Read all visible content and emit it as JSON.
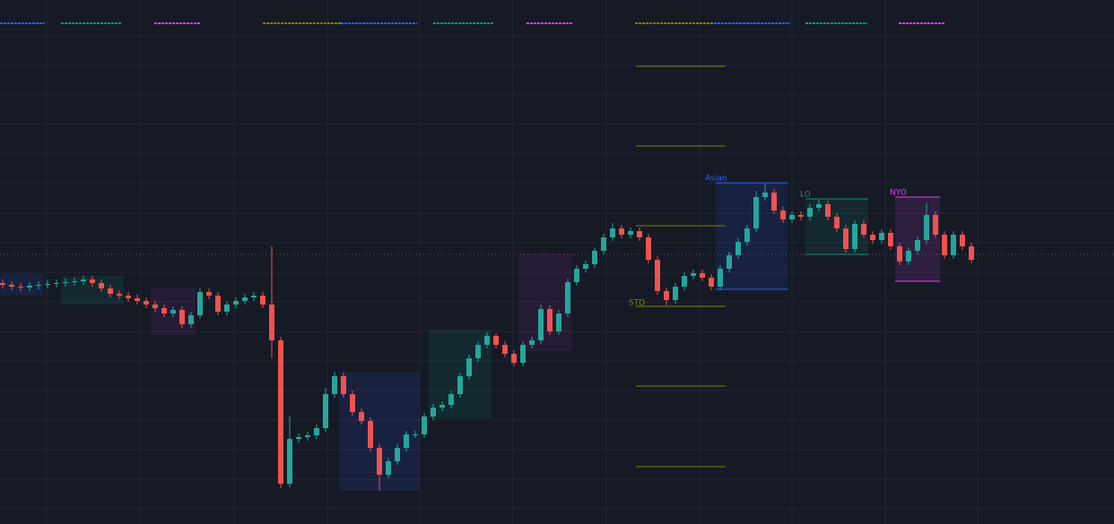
{
  "chart_data": {
    "type": "candlestick",
    "ylim": [
      0,
      585
    ],
    "up_color": "#26a69a",
    "down_color": "#ef5350",
    "open": [
      269,
      267,
      265,
      264,
      266,
      267,
      268,
      269,
      270,
      271,
      273,
      269,
      263,
      257,
      255,
      252,
      249,
      245,
      241,
      235,
      239,
      223,
      233,
      259,
      255,
      237,
      245,
      249,
      253,
      255,
      245,
      205,
      45,
      95,
      97,
      99,
      107,
      145,
      165,
      145,
      125,
      115,
      85,
      55,
      70,
      85,
      100,
      100,
      120,
      130,
      133,
      145,
      165,
      185,
      200,
      210,
      200,
      190,
      180,
      200,
      205,
      240,
      215,
      235,
      270,
      285,
      290,
      305,
      320,
      330,
      323,
      327,
      320,
      295,
      260,
      250,
      265,
      277,
      280,
      275,
      265,
      285,
      300,
      315,
      330,
      365,
      370,
      350,
      340,
      345,
      343,
      353,
      357,
      343,
      330,
      307,
      335,
      323,
      317,
      325,
      310,
      293,
      305,
      317,
      345,
      323,
      300,
      323,
      310
    ],
    "high": [
      273,
      271,
      269,
      270,
      271,
      272,
      273,
      274,
      275,
      277,
      277,
      273,
      267,
      261,
      259,
      256,
      253,
      249,
      245,
      243,
      243,
      237,
      263,
      263,
      259,
      249,
      253,
      257,
      259,
      259,
      310,
      209,
      120,
      101,
      103,
      111,
      152,
      170,
      169,
      149,
      129,
      119,
      89,
      74,
      89,
      104,
      104,
      124,
      134,
      137,
      149,
      169,
      189,
      204,
      214,
      213,
      204,
      194,
      204,
      209,
      245,
      244,
      239,
      274,
      289,
      294,
      309,
      324,
      336,
      334,
      331,
      331,
      324,
      299,
      264,
      269,
      281,
      284,
      284,
      279,
      289,
      304,
      319,
      334,
      372,
      380,
      374,
      354,
      349,
      349,
      357,
      362,
      361,
      347,
      334,
      339,
      339,
      327,
      329,
      329,
      314,
      309,
      321,
      358,
      349,
      327,
      327,
      327,
      314
    ],
    "low": [
      263,
      261,
      260,
      260,
      262,
      263,
      264,
      265,
      266,
      267,
      265,
      259,
      253,
      251,
      248,
      245,
      241,
      237,
      231,
      231,
      219,
      219,
      229,
      251,
      233,
      233,
      241,
      245,
      249,
      241,
      185,
      40,
      41,
      91,
      93,
      95,
      103,
      141,
      141,
      121,
      111,
      81,
      37,
      51,
      66,
      81,
      96,
      96,
      116,
      126,
      129,
      141,
      161,
      181,
      196,
      196,
      186,
      176,
      176,
      196,
      201,
      211,
      211,
      231,
      266,
      281,
      286,
      301,
      316,
      319,
      319,
      316,
      291,
      256,
      244,
      246,
      261,
      273,
      271,
      261,
      261,
      281,
      296,
      311,
      326,
      361,
      346,
      336,
      336,
      339,
      339,
      349,
      339,
      326,
      303,
      303,
      319,
      313,
      313,
      306,
      289,
      289,
      301,
      313,
      319,
      296,
      296,
      306,
      291
    ],
    "close": [
      267,
      265,
      264,
      266,
      267,
      268,
      269,
      270,
      271,
      273,
      269,
      263,
      257,
      255,
      252,
      249,
      245,
      241,
      235,
      239,
      223,
      233,
      259,
      255,
      237,
      245,
      249,
      253,
      255,
      245,
      205,
      45,
      95,
      97,
      99,
      107,
      145,
      165,
      145,
      125,
      115,
      85,
      55,
      70,
      85,
      100,
      100,
      120,
      130,
      133,
      145,
      165,
      185,
      200,
      210,
      200,
      190,
      180,
      200,
      205,
      240,
      215,
      235,
      270,
      285,
      290,
      305,
      320,
      330,
      323,
      327,
      320,
      295,
      260,
      250,
      265,
      277,
      280,
      275,
      265,
      285,
      300,
      315,
      330,
      365,
      370,
      350,
      340,
      345,
      343,
      353,
      357,
      343,
      330,
      307,
      335,
      323,
      317,
      325,
      310,
      293,
      305,
      317,
      345,
      323,
      300,
      323,
      310,
      295
    ],
    "sessions": [
      {
        "start": 0,
        "end": 4,
        "high": 280,
        "low": 255,
        "color": "#2962ff"
      },
      {
        "start": 7,
        "end": 13,
        "high": 277,
        "low": 245,
        "color": "#089981"
      },
      {
        "start": 17,
        "end": 21,
        "high": 264,
        "low": 211,
        "color": "#9c27b0"
      },
      {
        "start": 38,
        "end": 46,
        "high": 170,
        "low": 37,
        "color": "#2962ff"
      },
      {
        "start": 48,
        "end": 54,
        "high": 217,
        "low": 118,
        "color": "#089981"
      },
      {
        "start": 58,
        "end": 63,
        "high": 302,
        "low": 193,
        "color": "#9c27b0"
      },
      {
        "start": 80,
        "end": 87,
        "high": 381,
        "low": 262,
        "color": "#2962ff",
        "label": "Asian"
      },
      {
        "start": 90,
        "end": 96,
        "high": 363,
        "low": 301,
        "color": "#089981",
        "label": "LO"
      },
      {
        "start": 100,
        "end": 104,
        "high": 365,
        "low": 271,
        "color": "#e040fb",
        "label": "NYO"
      }
    ],
    "std_start": 71,
    "std_end": 80,
    "std_levels": [
      511,
      422,
      333,
      243,
      154,
      64
    ],
    "std_color": "#808000",
    "std_label": "STD",
    "price_line": 301
  }
}
